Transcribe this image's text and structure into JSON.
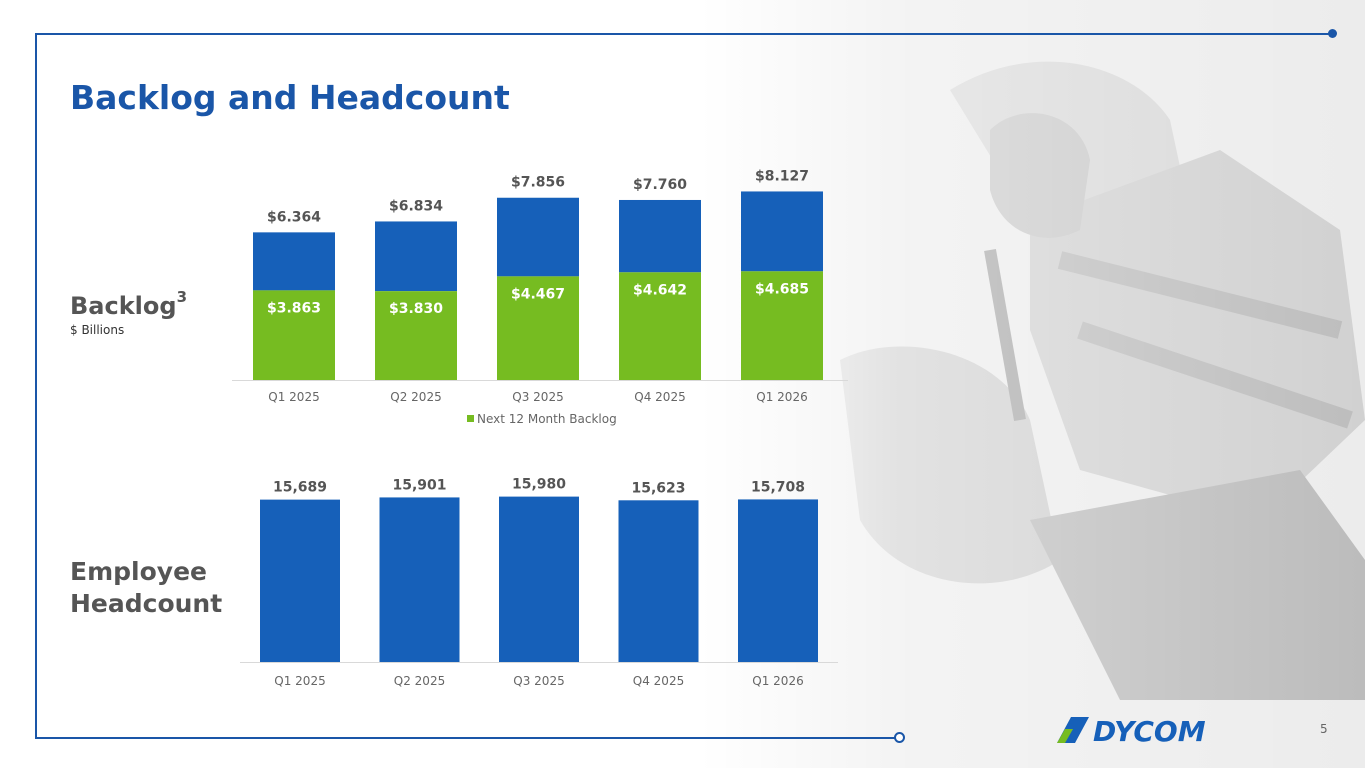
{
  "title": "Backlog and Headcount",
  "backlog_label": "Backlog",
  "backlog_superscript": "3",
  "backlog_unit": "$ Billions",
  "headcount_label_line1": "Employee",
  "headcount_label_line2": "Headcount",
  "page_number": "5",
  "logo_text": "DYCOM",
  "colors": {
    "brand_blue": "#1a56a8",
    "bar_blue": "#1660b9",
    "bar_green": "#76bc21",
    "label_gray": "#555555"
  },
  "chart_data": [
    {
      "type": "bar",
      "stacked": true,
      "categories": [
        "Q1 2025",
        "Q2 2025",
        "Q3 2025",
        "Q4 2025",
        "Q1 2026"
      ],
      "series": [
        {
          "name": "Next 12 Month Backlog",
          "values": [
            3.863,
            3.83,
            4.467,
            4.642,
            4.685
          ],
          "labels": [
            "$3.863",
            "$3.830",
            "$4.467",
            "$4.642",
            "$4.685"
          ]
        }
      ],
      "totals": [
        6.364,
        6.834,
        7.856,
        7.76,
        8.127
      ],
      "total_labels": [
        "$6.364",
        "$6.834",
        "$7.856",
        "$7.760",
        "$8.127"
      ],
      "legend": "bottom"
    },
    {
      "type": "bar",
      "categories": [
        "Q1 2025",
        "Q2 2025",
        "Q3 2025",
        "Q4 2025",
        "Q1 2026"
      ],
      "values": [
        15689,
        15901,
        15980,
        15623,
        15708
      ],
      "labels": [
        "15,689",
        "15,901",
        "15,980",
        "15,623",
        "15,708"
      ]
    }
  ]
}
